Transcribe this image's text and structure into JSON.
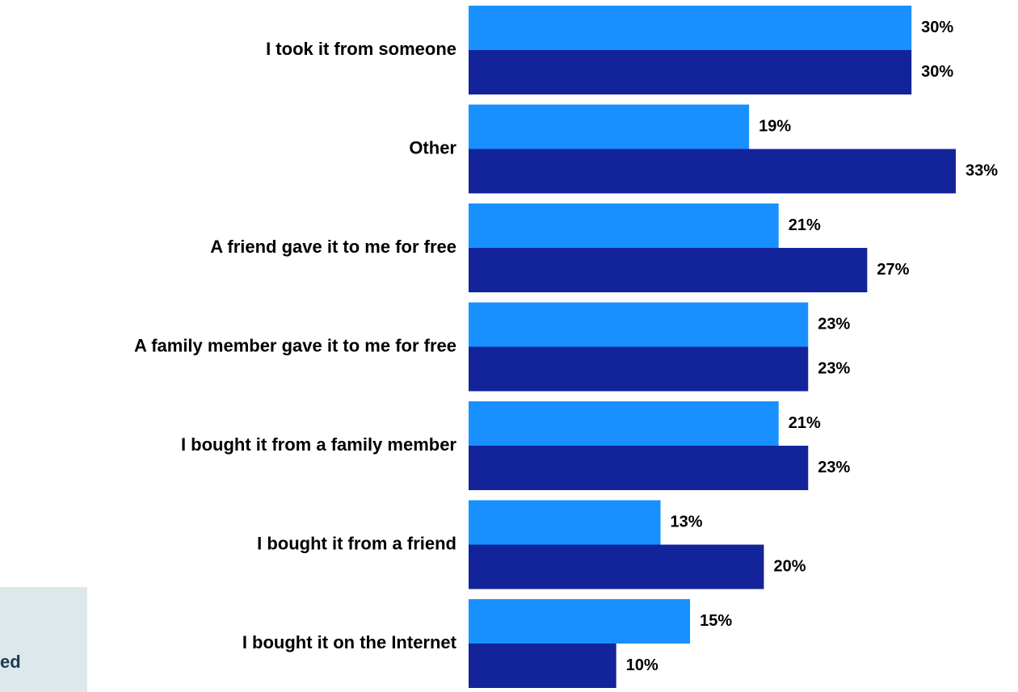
{
  "chart_data": {
    "type": "bar",
    "orientation": "horizontal",
    "categories": [
      "I took it from someone",
      "Other",
      "A friend gave it to me for free",
      "A family member gave it to me for free",
      "I bought it from a family member",
      "I bought it from a friend",
      "I bought it on the Internet"
    ],
    "series": [
      {
        "color": "#1890ff",
        "values": [
          30,
          19,
          21,
          23,
          21,
          13,
          15
        ],
        "labels": [
          "30%",
          "19%",
          "21%",
          "23%",
          "21%",
          "13%",
          "15%"
        ]
      },
      {
        "color": "#13249a",
        "values": [
          30,
          33,
          27,
          23,
          23,
          20,
          10
        ],
        "labels": [
          "30%",
          "33%",
          "27%",
          "23%",
          "23%",
          "20%",
          "10%"
        ]
      }
    ],
    "xlim": [
      0,
      33
    ],
    "grid": false,
    "legend": "none"
  },
  "side_panel": {
    "text": "ed",
    "background": "#dde8ea",
    "text_color": "#1d3b57"
  }
}
